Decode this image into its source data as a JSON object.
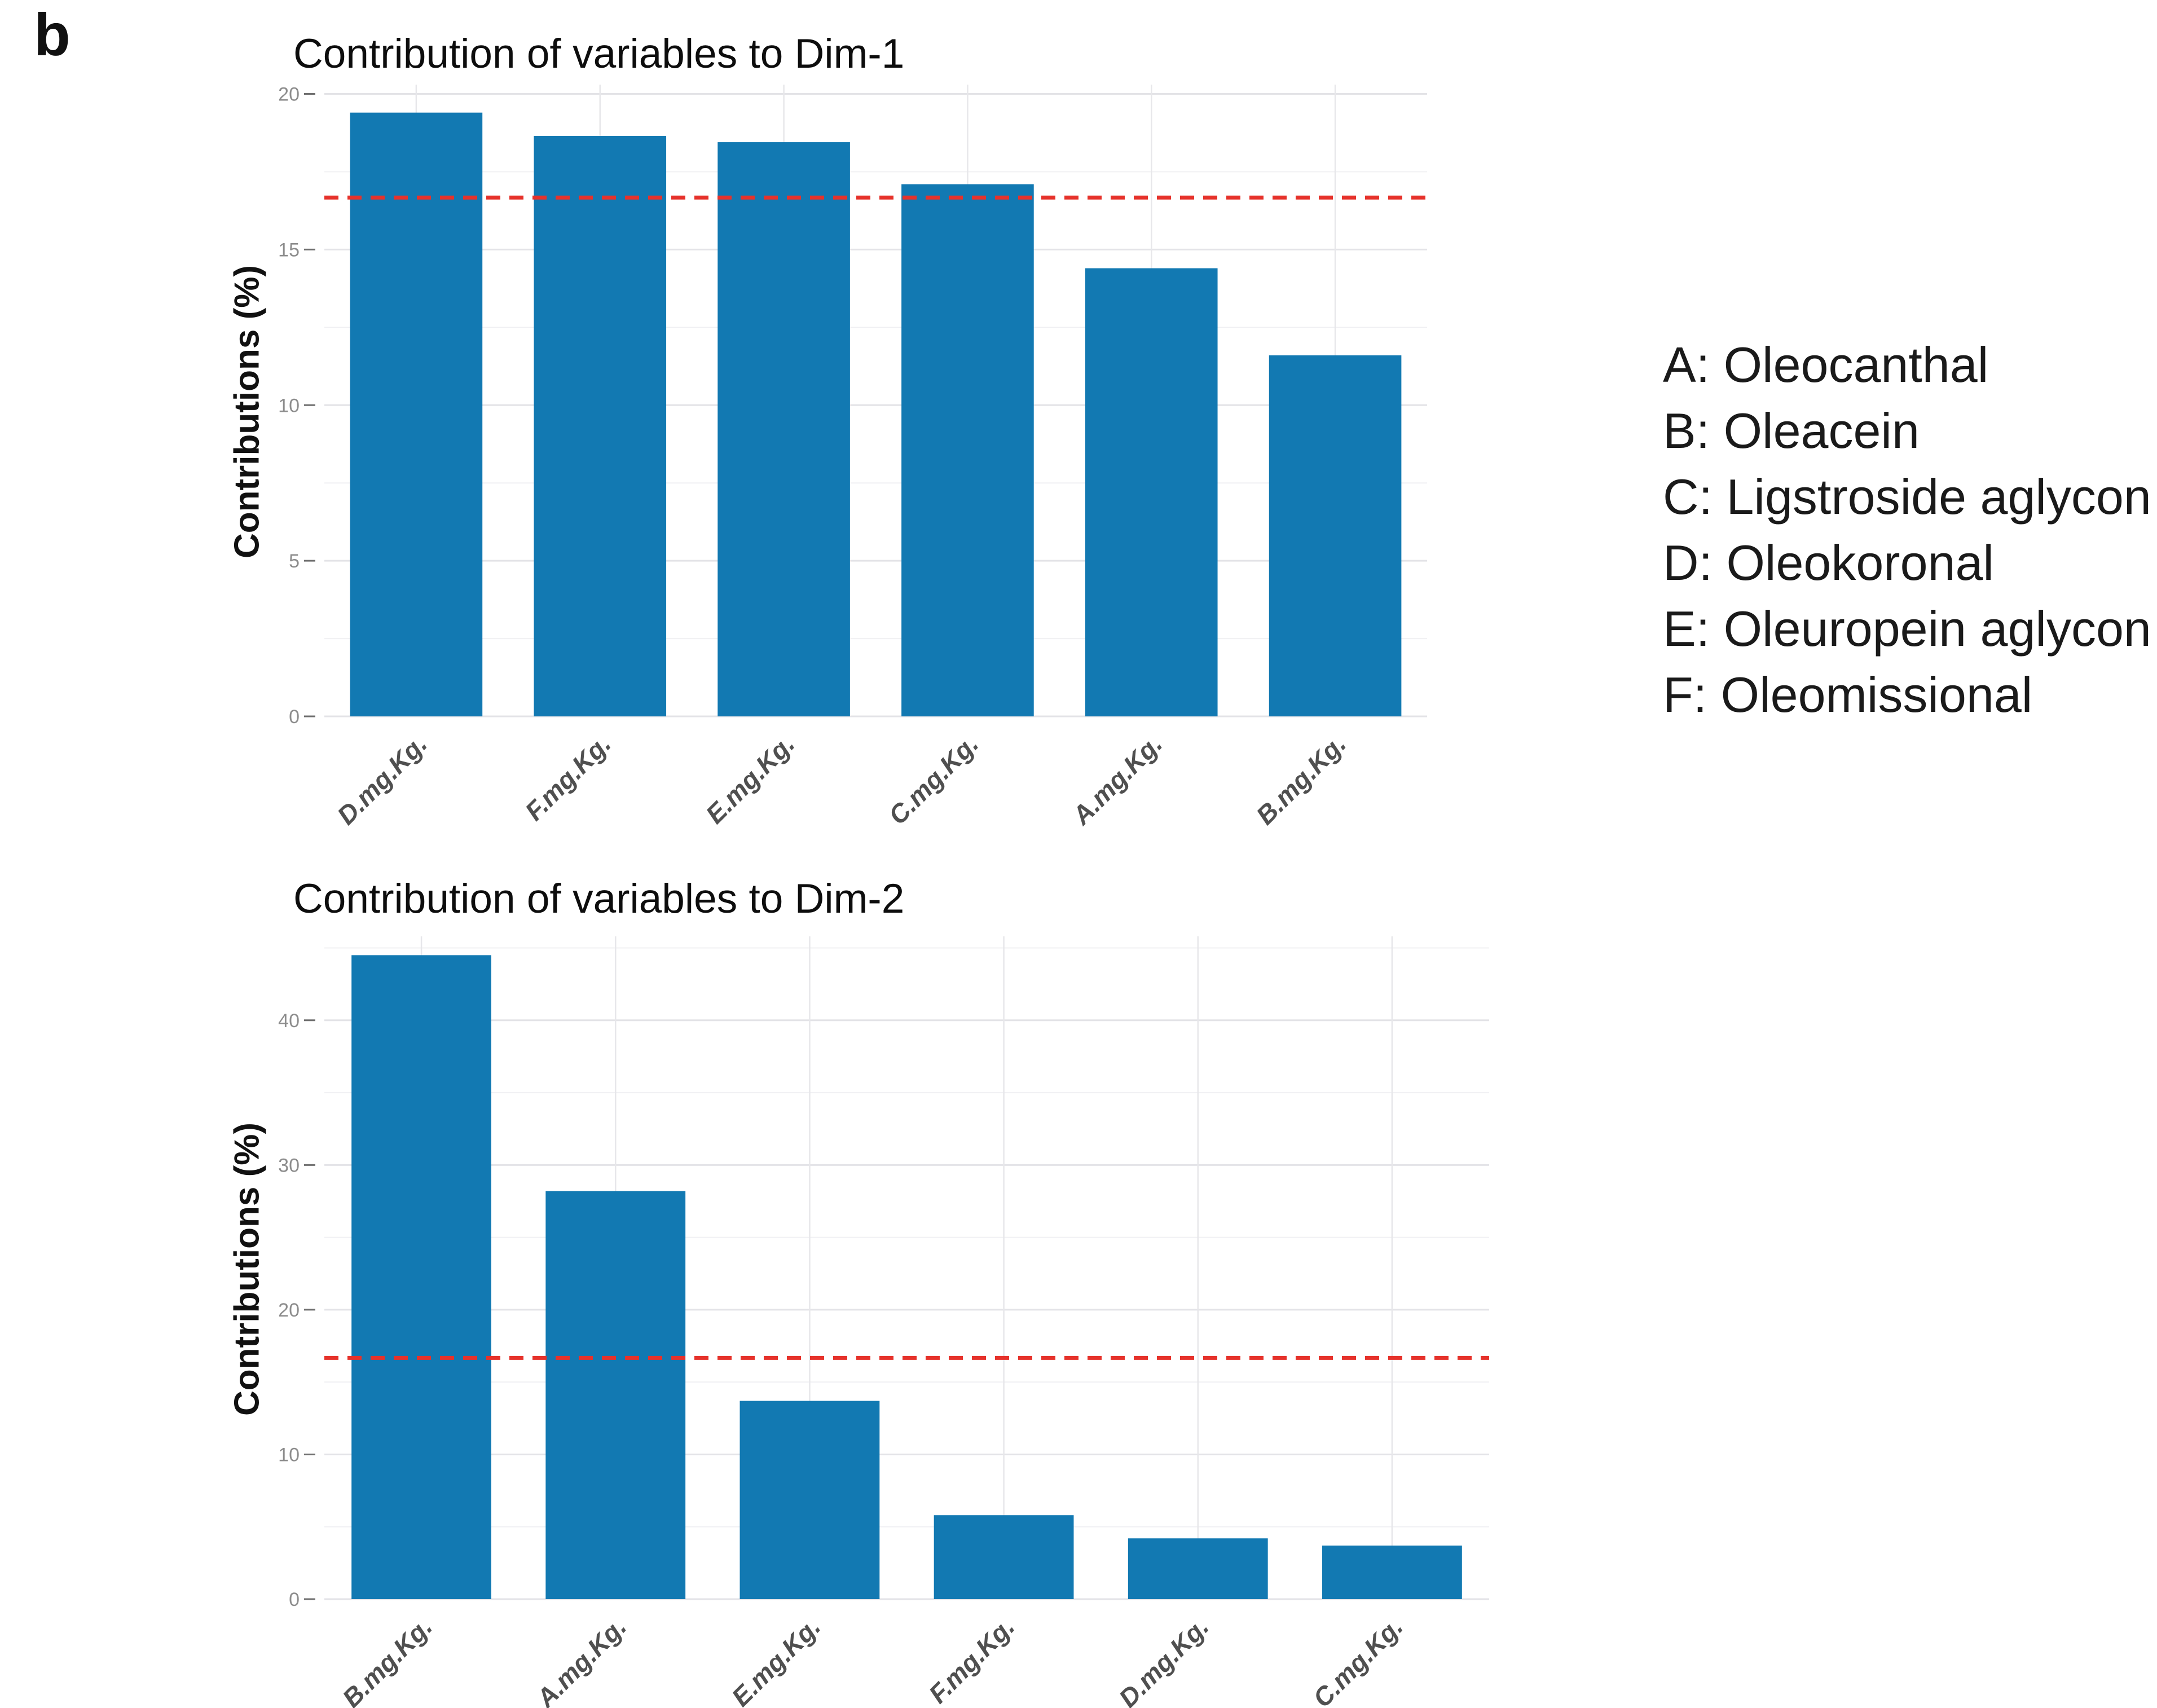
{
  "panel_label": "b",
  "colors": {
    "bar": "#1279b2",
    "ref_line": "#e6322b",
    "grid_major": "#e3e3e7",
    "grid_minor": "#f0f0f3",
    "grid_vertical": "#e7e7ea",
    "tick_text": "#8c8c8c",
    "tick_dash": "#6f6f6f",
    "xlabel_text": "#4f4f4f",
    "title_text": "#0d0d0d",
    "legend_text": "#1a1a1a"
  },
  "chart_data": [
    {
      "type": "bar",
      "title": "Contribution of variables to Dim-1",
      "xlabel": "",
      "ylabel": "Contributions (%)",
      "categories": [
        "D.mg.Kg.",
        "F.mg.Kg.",
        "E.mg.Kg.",
        "C.mg.Kg.",
        "A.mg.Kg.",
        "B.mg.Kg."
      ],
      "values": [
        19.4,
        18.65,
        18.45,
        17.1,
        14.4,
        11.6
      ],
      "ylim": [
        0,
        20.3
      ],
      "yticks": [
        0,
        5,
        10,
        15,
        20
      ],
      "yticks_minor": [
        2.5,
        7.5,
        12.5,
        17.5
      ],
      "ref_line": 16.67,
      "grid": true,
      "legend_position": "none",
      "bar_color_name": "blue",
      "ref_line_style": "dashed-red"
    },
    {
      "type": "bar",
      "title": "Contribution of variables to Dim-2",
      "xlabel": "",
      "ylabel": "Contributions (%)",
      "categories": [
        "B.mg.Kg.",
        "A.mg.Kg.",
        "E.mg.Kg.",
        "F.mg.Kg.",
        "D.mg.Kg.",
        "C.mg.Kg."
      ],
      "values": [
        44.5,
        28.2,
        13.7,
        5.8,
        4.2,
        3.7
      ],
      "ylim": [
        0,
        45.8
      ],
      "yticks": [
        0,
        10,
        20,
        30,
        40
      ],
      "yticks_minor": [
        5,
        15,
        25,
        35,
        45
      ],
      "ref_line": 16.67,
      "grid": true,
      "legend_position": "none",
      "bar_color_name": "blue",
      "ref_line_style": "dashed-red"
    }
  ],
  "legend": {
    "items": [
      "A: Oleocanthal",
      "B: Oleacein",
      "C: Ligstroside aglycon",
      "D: Oleokoronal",
      "E: Oleuropein aglycon",
      "F: Oleomissional"
    ]
  }
}
